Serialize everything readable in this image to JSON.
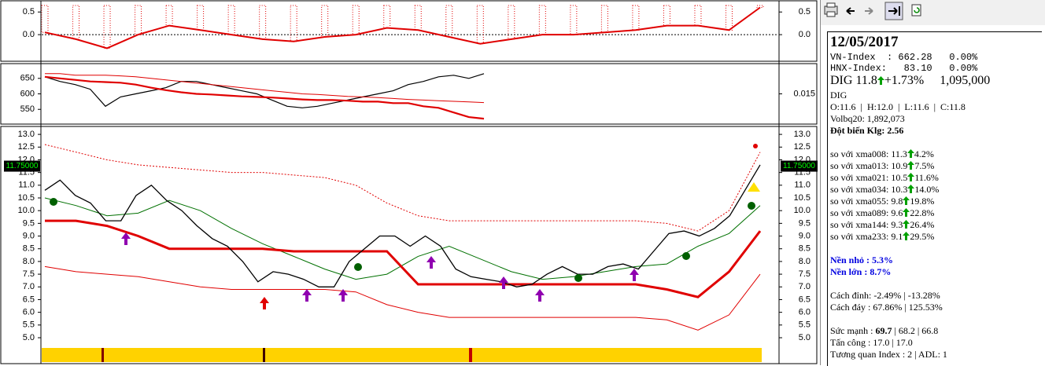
{
  "oscillator": {
    "ylim": [
      -0.57,
      0.73
    ],
    "yticks": [
      0.5,
      {
        "value": 0,
        "label": "0.0"
      }
    ],
    "color": "#e00000",
    "values": [
      0.05,
      -0.1,
      -0.3,
      0.0,
      0.2,
      0.1,
      0.0,
      -0.1,
      -0.15,
      -0.05,
      0.0,
      0.15,
      0.1,
      -0.05,
      -0.2,
      -0.1,
      0.0,
      0.0,
      0.05,
      0.1,
      0.2,
      0.2,
      0.1,
      0.6
    ]
  },
  "index_panel": {
    "ylim": [
      505,
      695
    ],
    "yticks": [
      550,
      600,
      650
    ],
    "y2lim": [
      0.005,
      0.025
    ],
    "y2ticks": [
      0.015
    ],
    "series": [
      {
        "color": "#000000",
        "values": [
          655,
          640,
          630,
          615,
          560,
          590,
          600,
          610,
          620,
          640,
          640,
          630,
          620,
          610,
          600,
          580,
          560,
          555,
          560,
          570,
          580,
          590,
          600,
          610,
          630,
          640,
          655,
          660,
          650,
          665
        ]
      },
      {
        "color": "#e00000",
        "values": [
          665,
          665,
          660,
          660,
          660,
          658,
          655,
          650,
          645,
          640,
          635,
          630,
          625,
          620,
          615,
          610,
          605,
          600,
          598,
          595,
          592,
          590,
          588,
          585,
          582,
          580,
          578,
          576,
          574,
          572
        ]
      },
      {
        "color": "#e00000",
        "values": [
          655,
          650,
          645,
          640,
          638,
          636,
          630,
          620,
          612,
          605,
          600,
          598,
          595,
          592,
          590,
          588,
          585,
          582,
          580,
          580,
          578,
          575,
          575,
          570,
          570,
          560,
          555,
          540,
          525,
          520
        ]
      }
    ]
  },
  "price_panel": {
    "ylim": [
      4.66,
      13.25
    ],
    "yticks": [
      {
        "value": 5,
        "label": "5.0"
      },
      {
        "value": 5.5,
        "label": "5.5"
      },
      {
        "value": 6,
        "label": "6.0"
      },
      {
        "value": 6.5,
        "label": "6.5"
      },
      {
        "value": 7,
        "label": "7.0"
      },
      {
        "value": 7.5,
        "label": "7.5"
      },
      {
        "value": 8,
        "label": "8.0"
      },
      {
        "value": 8.5,
        "label": "8.5"
      },
      {
        "value": 9,
        "label": "9.0"
      },
      {
        "value": 9.5,
        "label": "9.5"
      },
      {
        "value": 10,
        "label": "10.0"
      },
      {
        "value": 10.5,
        "label": "10.5"
      },
      {
        "value": 11,
        "label": "11.0"
      },
      {
        "value": 11.5,
        "label": "11.5"
      },
      {
        "value": 12,
        "label": "12.0"
      },
      {
        "value": 12.5,
        "label": "12.5"
      },
      {
        "value": 13,
        "label": "13.0"
      }
    ],
    "last_price": {
      "value": 11.75,
      "label": "11.75000"
    },
    "series": [
      {
        "color": "#000000",
        "values": [
          10.8,
          11.2,
          10.6,
          10.3,
          9.6,
          9.6,
          10.6,
          11.0,
          10.4,
          10.0,
          9.4,
          8.9,
          8.6,
          8.0,
          7.2,
          7.6,
          7.5,
          7.3,
          7.0,
          7.0,
          8.0,
          8.5,
          9.0,
          9.0,
          8.6,
          9.0,
          8.6,
          7.7,
          7.4,
          7.3,
          7.2,
          7.0,
          7.1,
          7.5,
          7.8,
          7.5,
          7.5,
          7.8,
          7.9,
          7.7,
          8.4,
          9.1,
          9.2,
          9.0,
          9.3,
          9.8,
          10.8,
          11.8
        ]
      },
      {
        "color": "#e00000",
        "values": [
          9.6,
          9.6,
          9.4,
          9.0,
          8.5,
          8.5,
          8.5,
          8.5,
          8.4,
          8.4,
          8.4,
          8.4,
          7.1,
          7.1,
          7.1,
          7.1,
          7.1,
          7.1,
          7.1,
          7.1,
          6.9,
          6.6,
          7.6,
          9.2
        ]
      },
      {
        "color": "#e00000",
        "values": [
          7.8,
          7.6,
          7.5,
          7.4,
          7.2,
          7.0,
          6.9,
          6.9,
          6.9,
          6.9,
          6.8,
          6.3,
          6.0,
          5.8,
          5.8,
          5.8,
          5.8,
          5.8,
          5.8,
          5.8,
          5.7,
          5.3,
          5.9,
          7.5
        ]
      },
      {
        "color": "#e00000",
        "values": [
          12.6,
          12.3,
          12.0,
          11.8,
          11.7,
          11.6,
          11.5,
          11.5,
          11.4,
          11.3,
          11.0,
          10.3,
          9.8,
          9.6,
          9.6,
          9.6,
          9.6,
          9.6,
          9.6,
          9.6,
          9.5,
          9.2,
          10.0,
          12.3
        ]
      },
      {
        "color": "#007000",
        "values": [
          10.5,
          10.2,
          9.8,
          9.9,
          10.4,
          10.0,
          9.3,
          8.7,
          8.2,
          7.7,
          7.3,
          7.5,
          8.2,
          8.6,
          8.1,
          7.6,
          7.3,
          7.4,
          7.6,
          7.8,
          7.9,
          8.6,
          9.1,
          10.2
        ]
      }
    ]
  },
  "info": {
    "date": "12/05/2017",
    "indices": [
      {
        "name": "VN-Index  :",
        "value": "662.28",
        "change": "0.00%"
      },
      {
        "name": "HNX-Index:",
        "value": " 83.10",
        "change": "0.00%"
      }
    ],
    "quote": {
      "symbol": "DIG",
      "price": "11.8",
      "change": "+1.73%",
      "volume": "1,095,000"
    },
    "symbol": "DIG",
    "ohlc": "O:11.6  |  H:12.0  |  L:11.6  |  C:11.8",
    "volbq": "Volbq20: 1,892,073",
    "volume_spike": {
      "label": "Đột biến Klg:",
      "value": "2.56"
    },
    "ma_compare": [
      {
        "label": "so với xma008:",
        "value": "11.3",
        "pct": "4.2%"
      },
      {
        "label": "so với xma013:",
        "value": "10.9",
        "pct": "7.5%"
      },
      {
        "label": "so với xma021:",
        "value": "10.5",
        "pct": "11.6%"
      },
      {
        "label": "so với xma034:",
        "value": "10.3",
        "pct": "14.0%"
      },
      {
        "label": "so với xma055:",
        "value": "9.8",
        "pct": "19.8%"
      },
      {
        "label": "so với xma089:",
        "value": "9.6",
        "pct": "22.8%"
      },
      {
        "label": "so với xma144:",
        "value": "9.3",
        "pct": "26.4%"
      },
      {
        "label": "so với xma233:",
        "value": "9.1",
        "pct": "29.5%"
      }
    ],
    "base_small": "Nền nhỏ : 5.3%",
    "base_large": "Nền lớn : 8.7%",
    "from_peak": "Cách đỉnh: -2.49% | -13.28%",
    "from_bottom": "Cách đáy : 67.86% | 125.53%",
    "strength": {
      "label": "Sức mạnh :",
      "main": "69.7",
      "rest": "| 68.2 | 66.8"
    },
    "attack": "Tấn công : 17.0 | 17.0",
    "correlation": "Tương quan Index : 2 | ADL: 1"
  }
}
